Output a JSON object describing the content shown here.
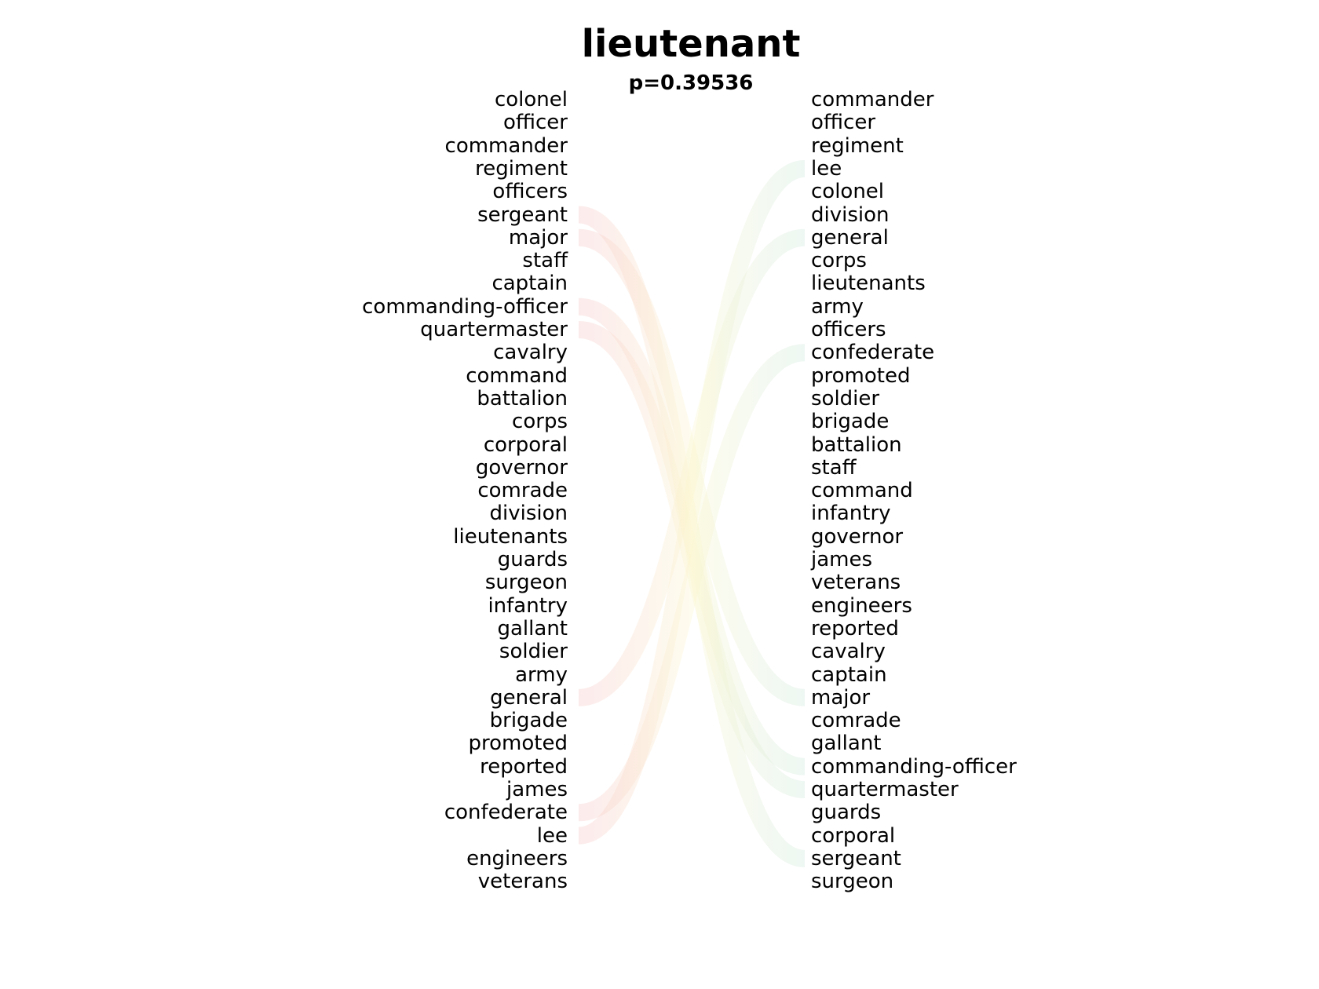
{
  "title": "lieutenant",
  "subtitle": "p=0.39536",
  "left_words": [
    "colonel",
    "officer",
    "commander",
    "regiment",
    "officers",
    "sergeant",
    "major",
    "staff",
    "captain",
    "commanding-officer",
    "quartermaster",
    "cavalry",
    "command",
    "battalion",
    "corps",
    "corporal",
    "governor",
    "comrade",
    "division",
    "lieutenants",
    "guards",
    "surgeon",
    "infantry",
    "gallant",
    "soldier",
    "army",
    "general",
    "brigade",
    "promoted",
    "reported",
    "james",
    "confederate",
    "lee",
    "engineers",
    "veterans"
  ],
  "right_words": [
    "commander",
    "officer",
    "regiment",
    "lee",
    "colonel",
    "division",
    "general",
    "corps",
    "lieutenants",
    "army",
    "officers",
    "confederate",
    "promoted",
    "soldier",
    "brigade",
    "battalion",
    "staff",
    "command",
    "infantry",
    "governor",
    "james",
    "veterans",
    "engineers",
    "reported",
    "cavalry",
    "captain",
    "major",
    "comrade",
    "gallant",
    "commanding-officer",
    "quartermaster",
    "guards",
    "corporal",
    "sergeant",
    "surgeon"
  ],
  "highlighted_links": [
    "sergeant",
    "major",
    "commanding-officer",
    "quartermaster",
    "general",
    "confederate",
    "lee"
  ],
  "colors": {
    "left_start": "#f7c6c6",
    "middle": "#fbf6cf",
    "right_end": "#cfe9dc"
  }
}
